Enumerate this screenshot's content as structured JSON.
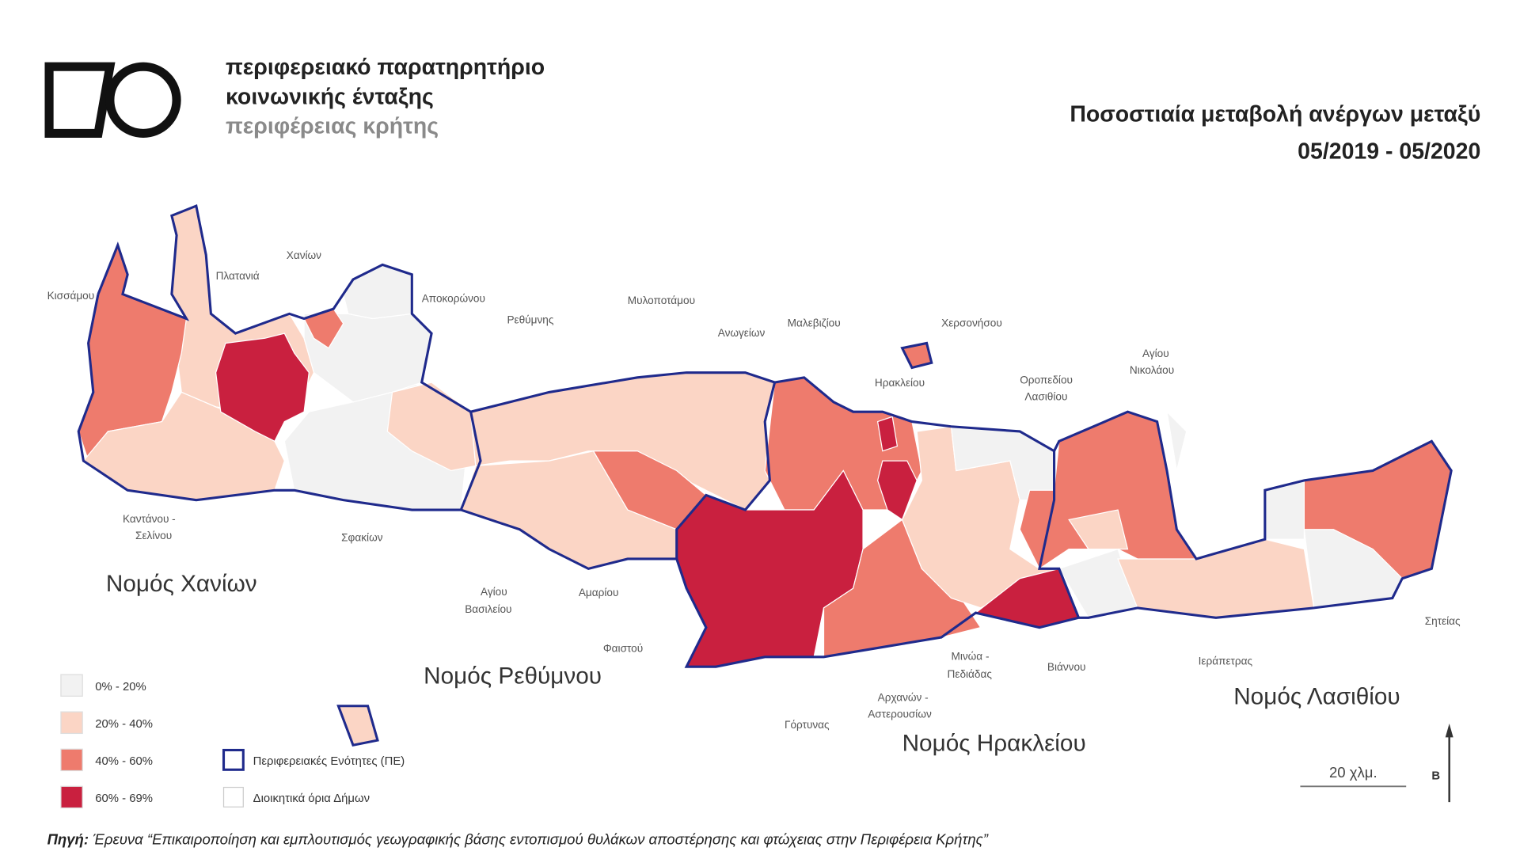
{
  "header": {
    "org": [
      "περιφερειακό παρατηρητήριο",
      "κοινωνικής ένταξης",
      "περιφέρειας κρήτης"
    ],
    "title": [
      "Ποσοστιαία μεταβολή ανέργων μεταξύ",
      "05/2019 - 05/2020"
    ]
  },
  "legend": {
    "classes": [
      {
        "label": "0% - 20%",
        "color": "#f2f2f2"
      },
      {
        "label": "20% - 40%",
        "color": "#fbd5c5"
      },
      {
        "label": "40% - 60%",
        "color": "#ee7b6d"
      },
      {
        "label": "60% - 69%",
        "color": "#c9203f"
      }
    ],
    "borders": [
      "Περιφερειακές Ενότητες (ΠΕ)",
      "Διοικητικά όρια Δήμων"
    ]
  },
  "municipalities": [
    [
      "Κισσάμου"
    ],
    [
      "Πλατανιά"
    ],
    [
      "Χανίων"
    ],
    [
      "Αποκορώνου"
    ],
    [
      "Ρεθύμνης"
    ],
    [
      "Μυλοποτάμου"
    ],
    [
      "Ανωγείων"
    ],
    [
      "Μαλεβιζίου"
    ],
    [
      "Χερσονήσου"
    ],
    [
      "Ηρακλείου"
    ],
    [
      "Οροπεδίου",
      "Λασιθίου"
    ],
    [
      "Αγίου",
      "Νικολάου"
    ],
    [
      "Καντάνου -",
      "Σελίνου"
    ],
    [
      "Σφακίων"
    ],
    [
      "Αγίου",
      "Βασιλείου"
    ],
    [
      "Αμαρίου"
    ],
    [
      "Φαιστού"
    ],
    [
      "Μινώα -",
      "Πεδιάδας"
    ],
    [
      "Βιάννου"
    ],
    [
      "Ιεράπετρας"
    ],
    [
      "Σητείας"
    ],
    [
      "Αρχανών -",
      "Αστερουσίων"
    ],
    [
      "Γόρτυνας"
    ]
  ],
  "prefectures": [
    "Νομός Χανίων",
    "Νομός Ρεθύμνου",
    "Νομός Ηρακλείου",
    "Νομός Λασιθίου"
  ],
  "scale": "20 χλμ.",
  "north": "Β",
  "source": {
    "prefix": "Πηγή:",
    "text": "Έρευνα “Επικαιροποίηση και εμπλουτισμός γεωγραφικής βάσης εντοπισμού θυλάκων αποστέρησης και φτώχειας στην Περιφέρεια Κρήτης”"
  }
}
